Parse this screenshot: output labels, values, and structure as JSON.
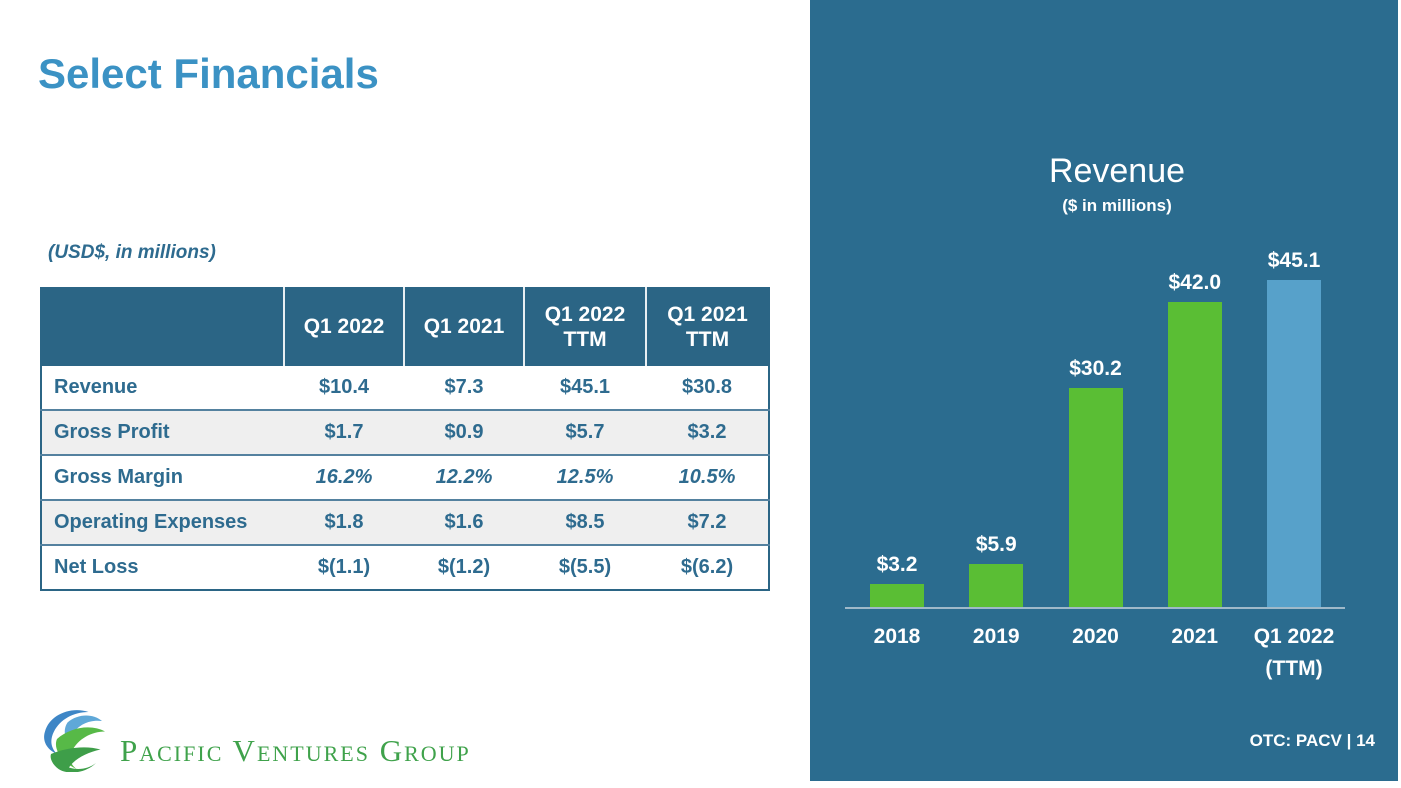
{
  "slide": {
    "title": "Select Financials",
    "table_caption": "(USD$, in millions)",
    "footer_ticker": "OTC: PACV | 14"
  },
  "logo": {
    "icon": "globe-swirl-icon",
    "text": "Pacific Ventures Group"
  },
  "table": {
    "headers": [
      "",
      "Q1 2022",
      "Q1 2021",
      "Q1 2022\nTTM",
      "Q1 2021\nTTM"
    ],
    "rows": [
      {
        "label": "Revenue",
        "values": [
          "$10.4",
          "$7.3",
          "$45.1",
          "$30.8"
        ],
        "italic": false
      },
      {
        "label": "Gross Profit",
        "values": [
          "$1.7",
          "$0.9",
          "$5.7",
          "$3.2"
        ],
        "italic": false
      },
      {
        "label": "Gross Margin",
        "values": [
          "16.2%",
          "12.2%",
          "12.5%",
          "10.5%"
        ],
        "italic": true
      },
      {
        "label": "Operating Expenses",
        "values": [
          "$1.8",
          "$1.6",
          "$8.5",
          "$7.2"
        ],
        "italic": false
      },
      {
        "label": "Net Loss",
        "values": [
          "$(1.1)",
          "$(1.2)",
          "$(5.5)",
          "$(6.2)"
        ],
        "italic": false
      }
    ]
  },
  "chart_data": {
    "type": "bar",
    "title": "Revenue",
    "subtitle": "($ in millions)",
    "categories": [
      "2018",
      "2019",
      "2020",
      "2021",
      "Q1 2022\n(TTM)"
    ],
    "values": [
      3.2,
      5.9,
      30.2,
      42.0,
      45.1
    ],
    "labels": [
      "$3.2",
      "$5.9",
      "$30.2",
      "$42.0",
      "$45.1"
    ],
    "bar_colors": [
      "green",
      "green",
      "green",
      "green",
      "blue"
    ],
    "ylim": [
      0,
      47
    ],
    "grid": "off",
    "legend": "none",
    "axis": "x baseline only"
  },
  "colors": {
    "title_blue": "#3B92C4",
    "panel_teal": "#2B6C8F",
    "table_header_teal": "#2B6585",
    "table_text": "#2E6B8F",
    "row_alt_gray": "#EFEFEF",
    "bar_green": "#5ABE34",
    "bar_blue": "#57A1CA",
    "axis_gray": "#9FB9C9",
    "logo_green": "#3FA24B"
  }
}
